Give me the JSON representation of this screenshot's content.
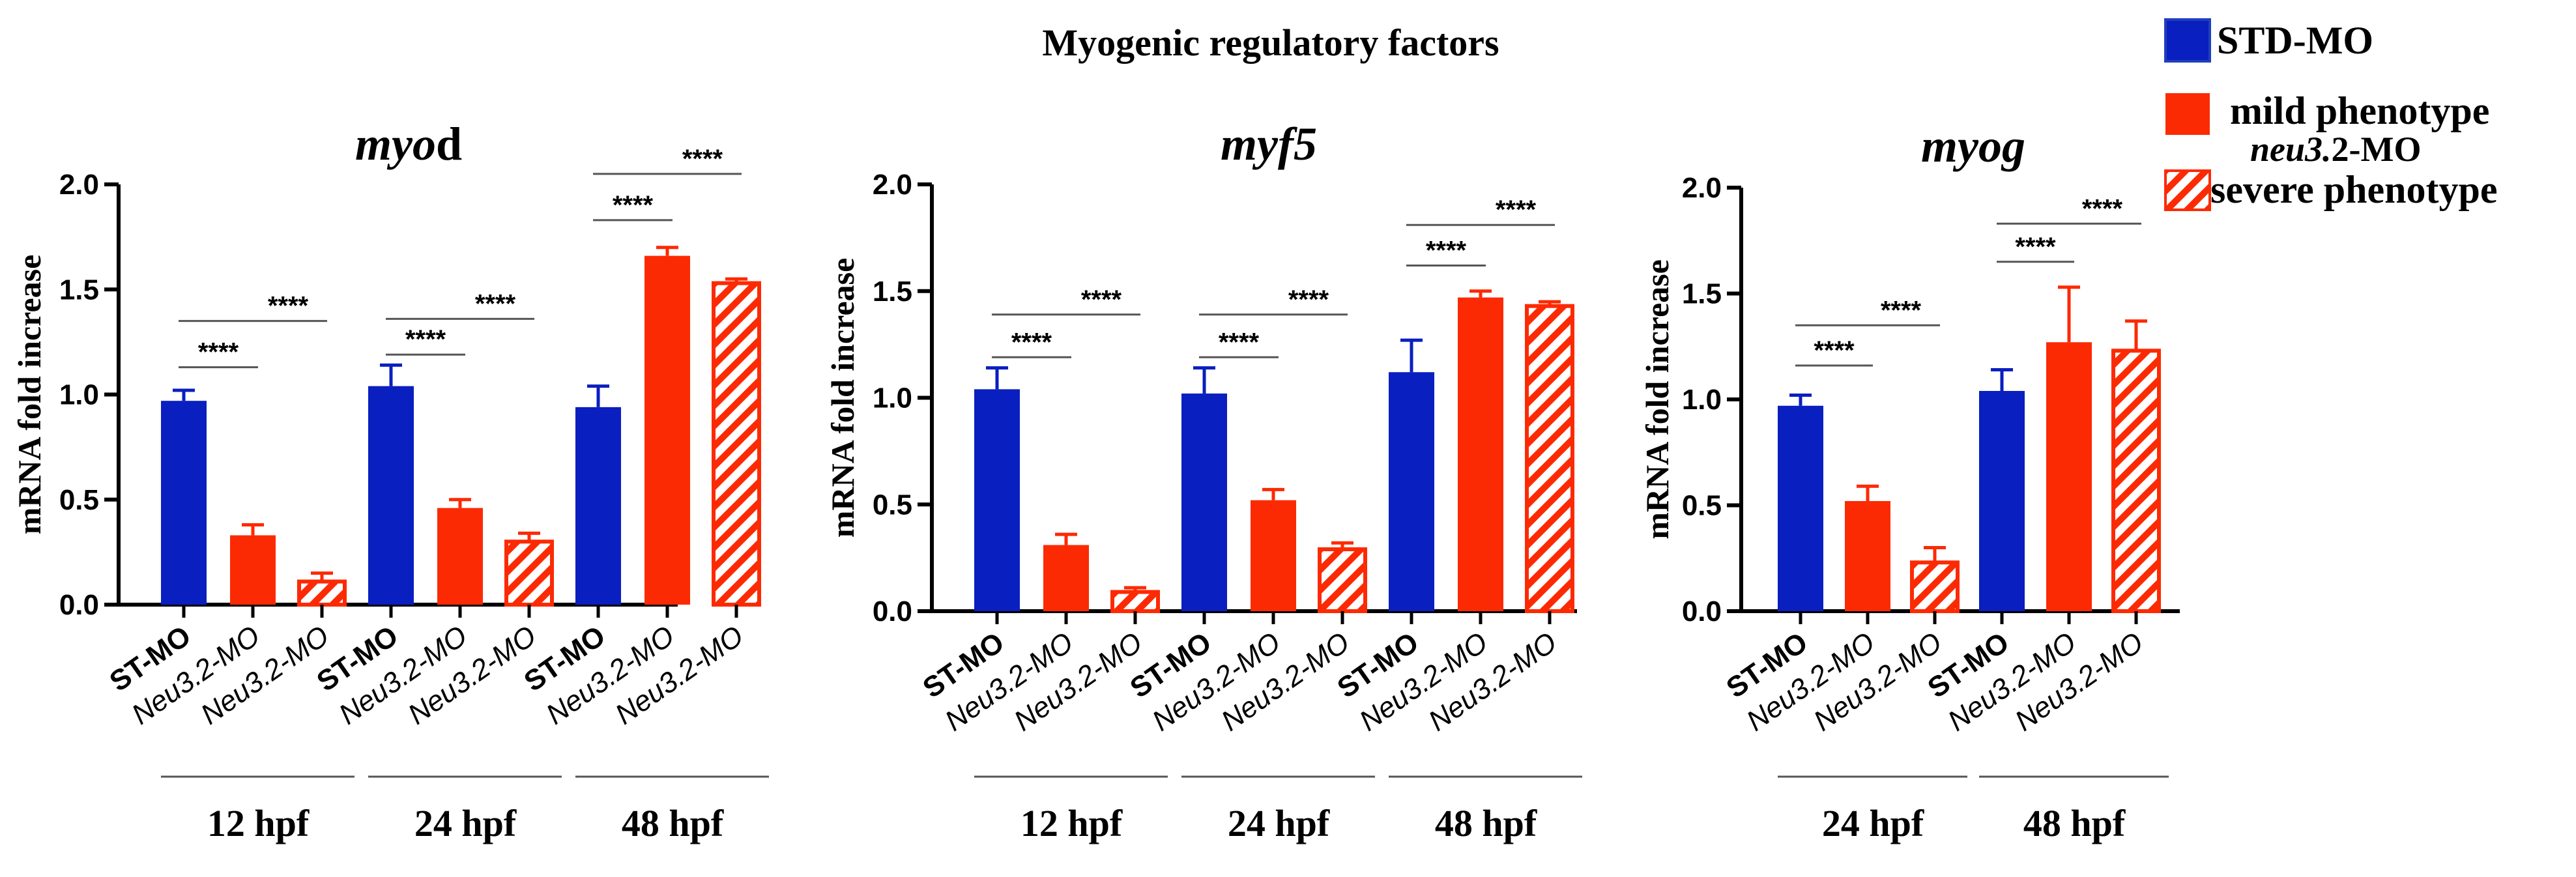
{
  "figure": {
    "title": "Myogenic regulatory factors",
    "legend": {
      "std": "STD-MO",
      "mild": "mild phenotype",
      "neu": "neu3.2-MO",
      "neu_prefix": "neu3.",
      "neu_suffix": "2-MO",
      "severe": "severe phenotype"
    },
    "colors": {
      "std": "#0a1fbf",
      "mo": "#fc2a02",
      "std_legend": "#1f3fbf"
    }
  },
  "chart_data": [
    {
      "type": "bar",
      "title": "myod",
      "title_parts": [
        "myo",
        "d"
      ],
      "ylabel": "mRNA fold increase",
      "ylim": [
        0,
        2.0
      ],
      "yticks": [
        "0.0",
        "0.5",
        "1.0",
        "1.5",
        "2.0"
      ],
      "categories": [
        "ST-MO",
        "Neu3.2-MO",
        "Neu3.2-MO",
        "ST-MO",
        "Neu3.2-MO",
        "Neu3.2-MO",
        "ST-MO",
        "Neu3.2-MO",
        "Neu3.2-MO"
      ],
      "kinds": [
        "std",
        "mild",
        "severe",
        "std",
        "mild",
        "severe",
        "std",
        "mild",
        "severe"
      ],
      "values": [
        0.97,
        0.33,
        0.11,
        1.04,
        0.46,
        0.3,
        0.94,
        1.66,
        1.53
      ],
      "errors": [
        0.05,
        0.05,
        0.04,
        0.1,
        0.04,
        0.04,
        0.1,
        0.04,
        0.02
      ],
      "groups": [
        {
          "label": "12 hpf",
          "start": 0,
          "end": 2
        },
        {
          "label": "24 hpf",
          "start": 3,
          "end": 5
        },
        {
          "label": "48 hpf",
          "start": 6,
          "end": 8
        }
      ],
      "significance": [
        {
          "from": 0,
          "to": 1,
          "y": 1.13,
          "text": "****"
        },
        {
          "from": 0,
          "to": 2,
          "y": 1.35,
          "text": "****"
        },
        {
          "from": 3,
          "to": 4,
          "y": 1.19,
          "text": "****"
        },
        {
          "from": 3,
          "to": 5,
          "y": 1.36,
          "text": "****"
        },
        {
          "from": 6,
          "to": 7,
          "y": 1.83,
          "text": "****"
        },
        {
          "from": 6,
          "to": 8,
          "y": 2.05,
          "text": "****"
        }
      ]
    },
    {
      "type": "bar",
      "title": "myf5",
      "title_parts": [
        "myf5",
        ""
      ],
      "ylabel": "mRNA fold increase",
      "ylim": [
        0,
        2.0
      ],
      "yticks": [
        "0.0",
        "0.5",
        "1.0",
        "1.5",
        "2.0"
      ],
      "categories": [
        "ST-MO",
        "Neu3.2-MO",
        "Neu3.2-MO",
        "ST-MO",
        "Neu3.2-MO",
        "Neu3.2-MO",
        "ST-MO",
        "Neu3.2-MO",
        "Neu3.2-MO"
      ],
      "kinds": [
        "std",
        "mild",
        "severe",
        "std",
        "mild",
        "severe",
        "std",
        "mild",
        "severe"
      ],
      "values": [
        1.04,
        0.31,
        0.09,
        1.02,
        0.52,
        0.29,
        1.12,
        1.47,
        1.43
      ],
      "errors": [
        0.1,
        0.05,
        0.02,
        0.12,
        0.05,
        0.03,
        0.15,
        0.03,
        0.02
      ],
      "groups": [
        {
          "label": "12 hpf",
          "start": 0,
          "end": 2
        },
        {
          "label": "24 hpf",
          "start": 3,
          "end": 5
        },
        {
          "label": "48 hpf",
          "start": 6,
          "end": 8
        }
      ],
      "significance": [
        {
          "from": 0,
          "to": 1,
          "y": 1.19,
          "text": "****"
        },
        {
          "from": 0,
          "to": 2,
          "y": 1.39,
          "text": "****"
        },
        {
          "from": 3,
          "to": 4,
          "y": 1.19,
          "text": "****"
        },
        {
          "from": 3,
          "to": 5,
          "y": 1.39,
          "text": "****"
        },
        {
          "from": 6,
          "to": 7,
          "y": 1.62,
          "text": "****"
        },
        {
          "from": 6,
          "to": 8,
          "y": 1.81,
          "text": "****"
        }
      ]
    },
    {
      "type": "bar",
      "title": "myog",
      "title_parts": [
        "myog",
        ""
      ],
      "ylabel": "mRNA fold increase",
      "ylim": [
        0,
        2.0
      ],
      "yticks": [
        "0.0",
        "0.5",
        "1.0",
        "1.5",
        "2.0"
      ],
      "categories": [
        "ST-MO",
        "Neu3.2-MO",
        "Neu3.2-MO",
        "ST-MO",
        "Neu3.2-MO",
        "Neu3.2-MO"
      ],
      "kinds": [
        "std",
        "mild",
        "severe",
        "std",
        "mild",
        "severe"
      ],
      "values": [
        0.97,
        0.52,
        0.23,
        1.04,
        1.27,
        1.23
      ],
      "errors": [
        0.05,
        0.07,
        0.07,
        0.1,
        0.26,
        0.14
      ],
      "groups": [
        {
          "label": "24 hpf",
          "start": 0,
          "end": 2
        },
        {
          "label": "48 hpf",
          "start": 3,
          "end": 5
        }
      ],
      "significance": [
        {
          "from": 0,
          "to": 1,
          "y": 1.16,
          "text": "****"
        },
        {
          "from": 0,
          "to": 2,
          "y": 1.35,
          "text": "****"
        },
        {
          "from": 3,
          "to": 4,
          "y": 1.65,
          "text": "****"
        },
        {
          "from": 3,
          "to": 5,
          "y": 1.83,
          "text": "****"
        }
      ]
    }
  ]
}
